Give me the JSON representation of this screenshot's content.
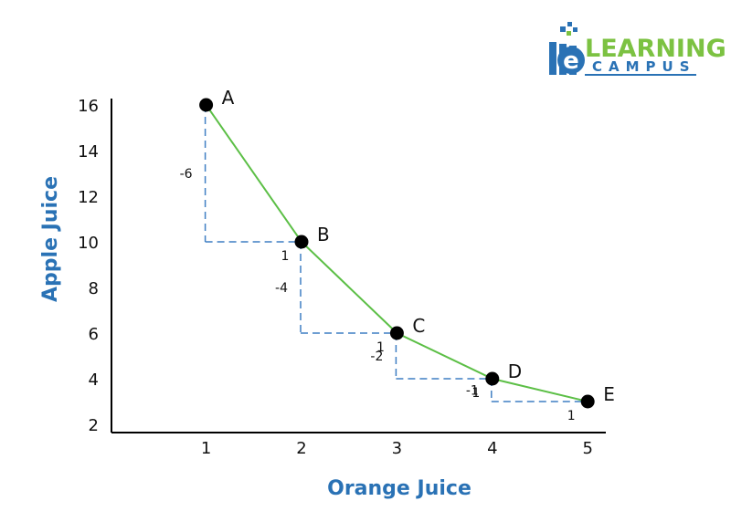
{
  "logo": {
    "letter": "e",
    "line1": "LEARNING",
    "line2": "CAMPUS",
    "colors": {
      "blue": "#2a72b5",
      "green": "#7cc242"
    }
  },
  "chart_data": {
    "type": "line",
    "xlabel": "Orange Juice",
    "ylabel": "Apple Juice",
    "x_ticks": [
      "1",
      "2",
      "3",
      "4",
      "5"
    ],
    "y_ticks": [
      "2",
      "4",
      "6",
      "8",
      "10",
      "12",
      "14",
      "16"
    ],
    "xlim": [
      0,
      5.2
    ],
    "ylim": [
      2,
      16
    ],
    "grid": false,
    "series": [
      {
        "points": [
          {
            "label": "A",
            "x": 1,
            "y": 16
          },
          {
            "label": "B",
            "x": 2,
            "y": 10
          },
          {
            "label": "C",
            "x": 3,
            "y": 6
          },
          {
            "label": "D",
            "x": 4,
            "y": 4
          },
          {
            "label": "E",
            "x": 5,
            "y": 3
          }
        ]
      }
    ],
    "steps": [
      {
        "rise": "-6",
        "run": "1"
      },
      {
        "rise": "-4",
        "run": "1"
      },
      {
        "rise": "-2",
        "run": "1"
      },
      {
        "rise": "-1",
        "run": "1"
      }
    ],
    "colors": {
      "line": "#5cbf46",
      "point": "#000000",
      "step": "#3f7fc4",
      "axis_title": "#2a72b5"
    }
  }
}
